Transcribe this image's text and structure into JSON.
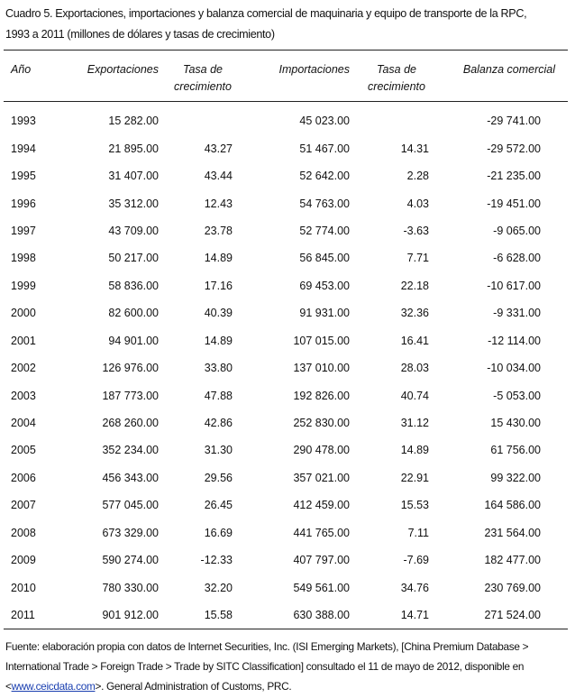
{
  "title_lines": [
    "Cuadro 5. Exportaciones, importaciones y balanza comercial de maquinaria y equipo de transporte de la RPC,",
    "1993 a 2011 (millones de dólares y tasas de crecimiento)"
  ],
  "table": {
    "headers": [
      "Año",
      "Exportaciones",
      "Tasa de crecimiento",
      "Importaciones",
      "Tasa de crecimiento",
      "Balanza comercial"
    ],
    "rows": [
      [
        "1993",
        "15 282.00",
        null,
        "45 023.00",
        null,
        "-29 741.00"
      ],
      [
        "1994",
        "21 895.00",
        "43.27",
        "51 467.00",
        "14.31",
        "-29 572.00"
      ],
      [
        "1995",
        "31 407.00",
        "43.44",
        "52 642.00",
        "2.28",
        "-21 235.00"
      ],
      [
        "1996",
        "35 312.00",
        "12.43",
        "54 763.00",
        "4.03",
        "-19 451.00"
      ],
      [
        "1997",
        "43 709.00",
        "23.78",
        "52 774.00",
        "-3.63",
        "-9 065.00"
      ],
      [
        "1998",
        "50 217.00",
        "14.89",
        "56 845.00",
        "7.71",
        "-6 628.00"
      ],
      [
        "1999",
        "58 836.00",
        "17.16",
        "69 453.00",
        "22.18",
        "-10 617.00"
      ],
      [
        "2000",
        "82 600.00",
        "40.39",
        "91 931.00",
        "32.36",
        "-9 331.00"
      ],
      [
        "2001",
        "94 901.00",
        "14.89",
        "107 015.00",
        "16.41",
        "-12 114.00"
      ],
      [
        "2002",
        "126 976.00",
        "33.80",
        "137 010.00",
        "28.03",
        "-10 034.00"
      ],
      [
        "2003",
        "187 773.00",
        "47.88",
        "192 826.00",
        "40.74",
        "-5 053.00"
      ],
      [
        "2004",
        "268 260.00",
        "42.86",
        "252 830.00",
        "31.12",
        "15 430.00"
      ],
      [
        "2005",
        "352 234.00",
        "31.30",
        "290 478.00",
        "14.89",
        "61 756.00"
      ],
      [
        "2006",
        "456 343.00",
        "29.56",
        "357 021.00",
        "22.91",
        "99 322.00"
      ],
      [
        "2007",
        "577 045.00",
        "26.45",
        "412 459.00",
        "15.53",
        "164 586.00"
      ],
      [
        "2008",
        "673 329.00",
        "16.69",
        "441 765.00",
        "7.11",
        "231 564.00"
      ],
      [
        "2009",
        "590 274.00",
        "-12.33",
        "407 797.00",
        "-7.69",
        "182 477.00"
      ],
      [
        "2010",
        "780 330.00",
        "32.20",
        "549 561.00",
        "34.76",
        "230 769.00"
      ],
      [
        "2011",
        "901 912.00",
        "15.58",
        "630 388.00",
        "14.71",
        "271 524.00"
      ]
    ]
  },
  "footnote": {
    "text": "Fuente: elaboración propia con datos de Internet Securities, Inc. (ISI Emerging Markets), [China Premium Database > International Trade > Foreign Trade > Trade by SITC Classification] consultado el 11 de mayo de 2012, disponible en <",
    "link": "www.ceicdata.com",
    "tail": ">. General Administration of Customs, PRC."
  }
}
